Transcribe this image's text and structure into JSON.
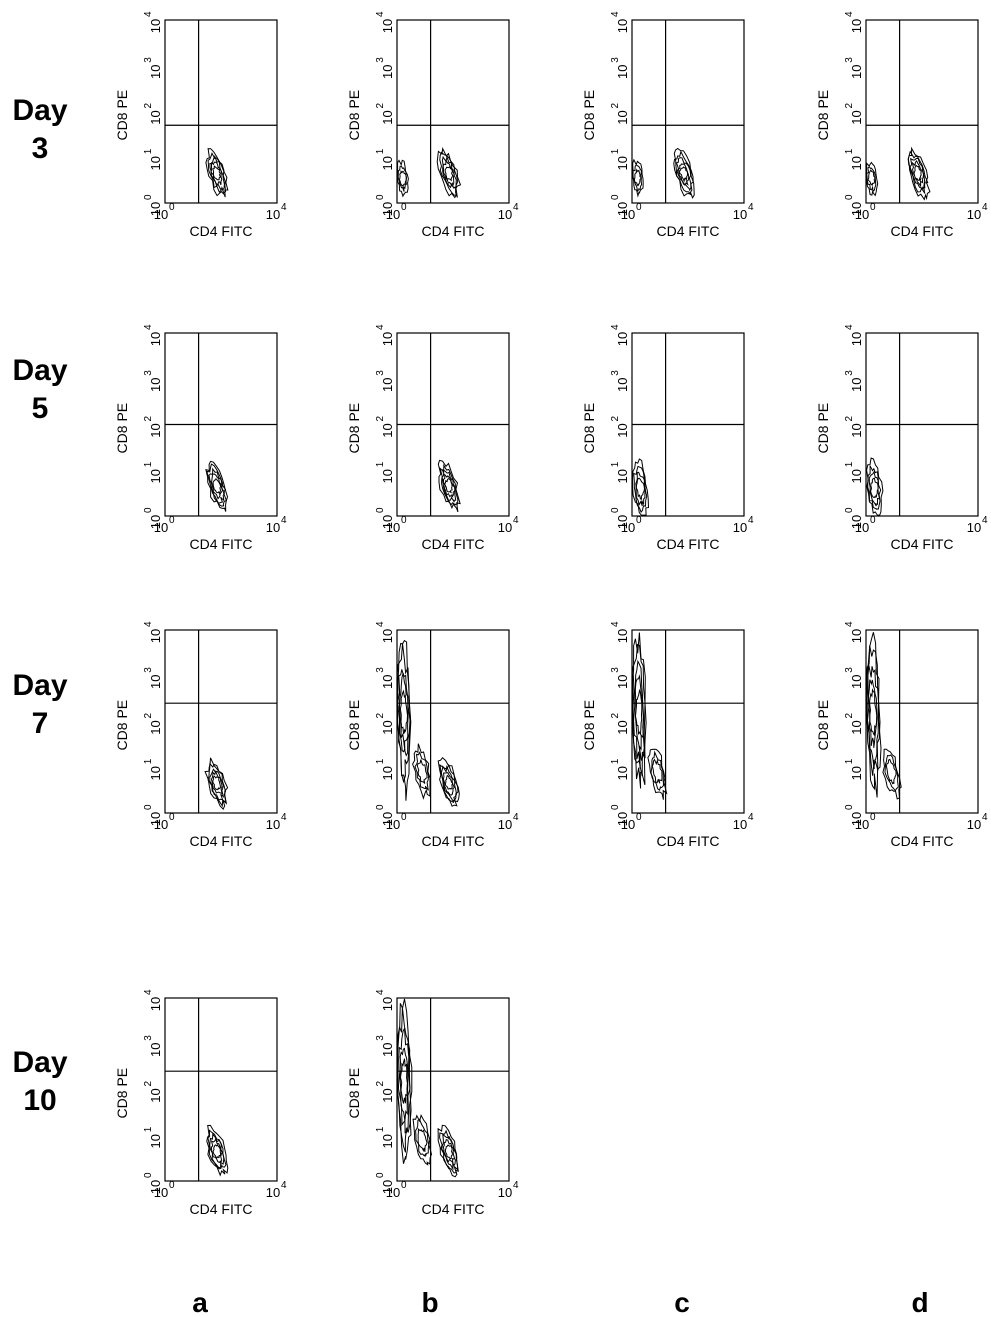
{
  "chart_data": {
    "type": "contour",
    "panel_xlabel": "CD4 FITC",
    "panel_ylabel": "CD8 PE",
    "axis_scale": "log",
    "axis_range": [
      "10^0",
      "10^4"
    ],
    "tick_base": "10",
    "x_tick_exponents": [
      "0",
      "4"
    ],
    "y_tick_exponents": [
      "0",
      "1",
      "2",
      "3",
      "4"
    ],
    "rows": [
      {
        "label_line1": "Day",
        "label_line2": "3"
      },
      {
        "label_line1": "Day",
        "label_line2": "5"
      },
      {
        "label_line1": "Day",
        "label_line2": "7"
      },
      {
        "label_line1": "Day",
        "label_line2": "10"
      }
    ],
    "columns": [
      "a",
      "b",
      "c",
      "d"
    ],
    "panels": [
      {
        "row": 0,
        "col": 0,
        "gate_x": 1.2,
        "gate_y": 1.7,
        "populations": [
          "cd4"
        ]
      },
      {
        "row": 0,
        "col": 1,
        "gate_x": 1.2,
        "gate_y": 1.7,
        "populations": [
          "cd4",
          "dn"
        ]
      },
      {
        "row": 0,
        "col": 2,
        "gate_x": 1.2,
        "gate_y": 1.7,
        "populations": [
          "cd4",
          "dn"
        ]
      },
      {
        "row": 0,
        "col": 3,
        "gate_x": 1.2,
        "gate_y": 1.7,
        "populations": [
          "cd4",
          "dn"
        ]
      },
      {
        "row": 1,
        "col": 0,
        "gate_x": 1.2,
        "gate_y": 2.0,
        "populations": [
          "cd4"
        ]
      },
      {
        "row": 1,
        "col": 1,
        "gate_x": 1.2,
        "gate_y": 2.0,
        "populations": [
          "cd4"
        ]
      },
      {
        "row": 1,
        "col": 2,
        "gate_x": 1.2,
        "gate_y": 2.0,
        "populations": [
          "dn_low"
        ]
      },
      {
        "row": 1,
        "col": 3,
        "gate_x": 1.2,
        "gate_y": 2.0,
        "populations": [
          "dn_low"
        ]
      },
      {
        "row": 2,
        "col": 0,
        "gate_x": 1.2,
        "gate_y": 2.4,
        "populations": [
          "cd4"
        ]
      },
      {
        "row": 2,
        "col": 1,
        "gate_x": 1.2,
        "gate_y": 2.4,
        "populations": [
          "cd4",
          "cd8"
        ]
      },
      {
        "row": 2,
        "col": 2,
        "gate_x": 1.2,
        "gate_y": 2.4,
        "populations": [
          "cd8"
        ]
      },
      {
        "row": 2,
        "col": 3,
        "gate_x": 1.2,
        "gate_y": 2.4,
        "populations": [
          "cd8"
        ]
      },
      {
        "row": 3,
        "col": 0,
        "gate_x": 1.2,
        "gate_y": 2.4,
        "populations": [
          "cd4"
        ]
      },
      {
        "row": 3,
        "col": 1,
        "gate_x": 1.2,
        "gate_y": 2.4,
        "populations": [
          "cd4",
          "cd8"
        ]
      }
    ]
  }
}
